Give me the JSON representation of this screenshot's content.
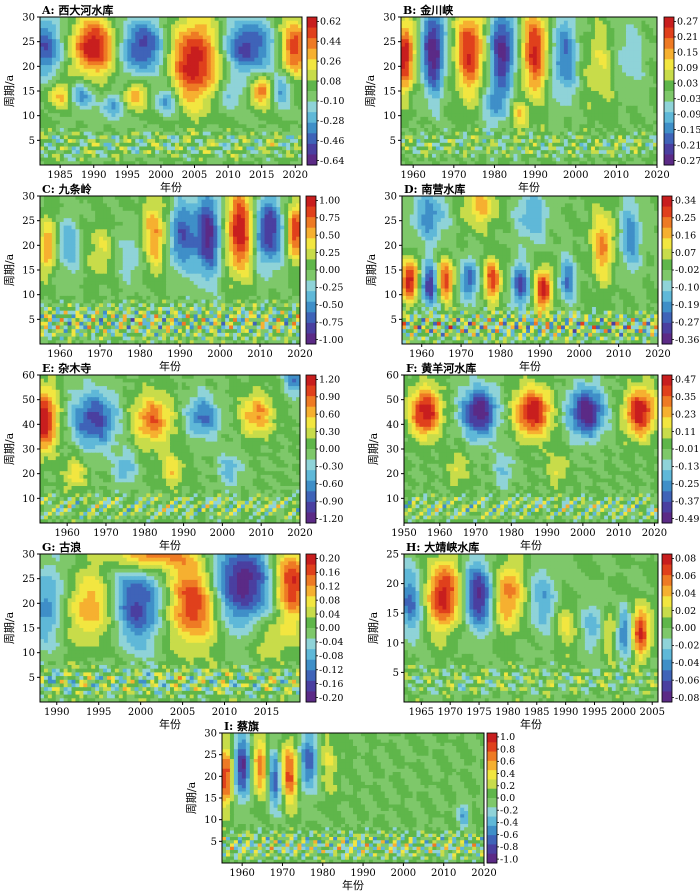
{
  "figure": {
    "palette": [
      "#5b2a86",
      "#4a3fa0",
      "#3f63b8",
      "#3f8fc8",
      "#5fb8d8",
      "#8fd3d8",
      "#7ec86a",
      "#5fb64a",
      "#c8dc4a",
      "#f2e640",
      "#f6b030",
      "#ee7a24",
      "#e0401c",
      "#c81e1e"
    ]
  },
  "chart_data": [
    {
      "type": "heatmap",
      "title": "A: 西大河水库",
      "xlabel": "年份",
      "ylabel": "周期/a",
      "x_range": [
        1982,
        2021
      ],
      "x_ticks": [
        1985,
        1990,
        1995,
        2000,
        2005,
        2010,
        2015,
        2020
      ],
      "y_range": [
        0,
        30
      ],
      "y_ticks": [
        5,
        10,
        15,
        20,
        25,
        30
      ],
      "colorbar_ticks": [
        "0.62",
        "0.44",
        "0.26",
        "0.08",
        "-0.10",
        "-0.28",
        "-0.46",
        "-0.64"
      ],
      "blobs": [
        {
          "x": 1983,
          "y": 24,
          "sx": 2.0,
          "sy": 4,
          "a": -0.7
        },
        {
          "x": 1990,
          "y": 24,
          "sx": 2.5,
          "sy": 4,
          "a": 1.0
        },
        {
          "x": 1997,
          "y": 24,
          "sx": 2.5,
          "sy": 4,
          "a": -0.8
        },
        {
          "x": 2005,
          "y": 21,
          "sx": 2.5,
          "sy": 6,
          "a": 1.0
        },
        {
          "x": 2013,
          "y": 24,
          "sx": 2.5,
          "sy": 4,
          "a": -0.8
        },
        {
          "x": 2020,
          "y": 24,
          "sx": 1.5,
          "sy": 4,
          "a": 0.8
        },
        {
          "x": 1985,
          "y": 14,
          "sx": 1.2,
          "sy": 2,
          "a": 0.5
        },
        {
          "x": 1988,
          "y": 14,
          "sx": 1.2,
          "sy": 2,
          "a": -0.5
        },
        {
          "x": 1993,
          "y": 12,
          "sx": 1.2,
          "sy": 2,
          "a": -0.5
        },
        {
          "x": 1996,
          "y": 14,
          "sx": 1.2,
          "sy": 2,
          "a": 0.6
        },
        {
          "x": 2001,
          "y": 13,
          "sx": 1.2,
          "sy": 2,
          "a": -0.5
        },
        {
          "x": 2015,
          "y": 15,
          "sx": 1.2,
          "sy": 2,
          "a": 0.7
        },
        {
          "x": 2018,
          "y": 15,
          "sx": 1.0,
          "sy": 2,
          "a": -0.5
        },
        {
          "x": 2010,
          "y": 14,
          "sx": 1.2,
          "sy": 2,
          "a": -0.4
        }
      ],
      "osc": {
        "ymax": 9,
        "amp": 0.4,
        "period": 3.5
      }
    },
    {
      "type": "heatmap",
      "title": "B: 金川峡",
      "xlabel": "年份",
      "ylabel": "周期/a",
      "x_range": [
        1957,
        2020
      ],
      "x_ticks": [
        1960,
        1970,
        1980,
        1990,
        2000,
        2010,
        2020
      ],
      "y_range": [
        0,
        30
      ],
      "y_ticks": [
        5,
        10,
        15,
        20,
        25,
        30
      ],
      "colorbar_ticks": [
        "0.27",
        "0.21",
        "0.15",
        "0.09",
        "0.03",
        "-0.03",
        "-0.09",
        "-0.15",
        "-0.21",
        "-0.27"
      ],
      "blobs": [
        {
          "x": 1958,
          "y": 22,
          "sx": 1.5,
          "sy": 5,
          "a": 1.0
        },
        {
          "x": 1965,
          "y": 23,
          "sx": 2.0,
          "sy": 6,
          "a": -1.0
        },
        {
          "x": 1974,
          "y": 23,
          "sx": 2.5,
          "sy": 6,
          "a": 0.9
        },
        {
          "x": 1982,
          "y": 23,
          "sx": 2.5,
          "sy": 6,
          "a": -0.9
        },
        {
          "x": 1990,
          "y": 23,
          "sx": 2.5,
          "sy": 6,
          "a": 0.9
        },
        {
          "x": 1997,
          "y": 22,
          "sx": 2.5,
          "sy": 6,
          "a": -0.6
        },
        {
          "x": 2006,
          "y": 20,
          "sx": 3.0,
          "sy": 6,
          "a": 0.3
        },
        {
          "x": 2013,
          "y": 22,
          "sx": 2.5,
          "sy": 5,
          "a": -0.3
        },
        {
          "x": 1980,
          "y": 12,
          "sx": 2.0,
          "sy": 3,
          "a": -0.4
        },
        {
          "x": 1986,
          "y": 10,
          "sx": 1.5,
          "sy": 2,
          "a": 0.4
        }
      ],
      "osc": {
        "ymax": 9,
        "amp": 0.35,
        "period": 4
      }
    },
    {
      "type": "heatmap",
      "title": "C: 九条岭",
      "xlabel": "年份",
      "ylabel": "周期/a",
      "x_range": [
        1955,
        2020
      ],
      "x_ticks": [
        1960,
        1970,
        1980,
        1990,
        2000,
        2010,
        2020
      ],
      "y_range": [
        0,
        30
      ],
      "y_ticks": [
        5,
        10,
        15,
        20,
        25,
        30
      ],
      "colorbar_ticks": [
        "1.00",
        "0.75",
        "0.50",
        "0.25",
        "0.00",
        "-0.25",
        "-0.50",
        "-0.75",
        "-1.00"
      ],
      "blobs": [
        {
          "x": 1957,
          "y": 20,
          "sx": 1.5,
          "sy": 4,
          "a": 0.6
        },
        {
          "x": 1962,
          "y": 20,
          "sx": 2.0,
          "sy": 4,
          "a": -0.4
        },
        {
          "x": 1970,
          "y": 19,
          "sx": 2.0,
          "sy": 4,
          "a": 0.3
        },
        {
          "x": 1978,
          "y": 18,
          "sx": 2.0,
          "sy": 4,
          "a": -0.3
        },
        {
          "x": 1984,
          "y": 22,
          "sx": 2.5,
          "sy": 5,
          "a": 0.6
        },
        {
          "x": 1990,
          "y": 22,
          "sx": 2.5,
          "sy": 5,
          "a": -0.7
        },
        {
          "x": 1997,
          "y": 22,
          "sx": 2.5,
          "sy": 6,
          "a": -0.9
        },
        {
          "x": 2005,
          "y": 23,
          "sx": 2.5,
          "sy": 6,
          "a": 1.0
        },
        {
          "x": 2012,
          "y": 23,
          "sx": 2.5,
          "sy": 5,
          "a": -0.9
        },
        {
          "x": 2019,
          "y": 23,
          "sx": 1.5,
          "sy": 4,
          "a": 0.9
        }
      ],
      "osc": {
        "ymax": 10,
        "amp": 0.7,
        "period": 3.2
      }
    },
    {
      "type": "heatmap",
      "title": "D: 南营水库",
      "xlabel": "年份",
      "ylabel": "周期/a",
      "x_range": [
        1955,
        2020
      ],
      "x_ticks": [
        1960,
        1970,
        1980,
        1990,
        2000,
        2010,
        2020
      ],
      "y_range": [
        0,
        30
      ],
      "y_ticks": [
        5,
        10,
        15,
        20,
        25,
        30
      ],
      "colorbar_ticks": [
        "0.34",
        "0.25",
        "0.16",
        "0.07",
        "-0.02",
        "-0.10",
        "-0.19",
        "-0.27",
        "-0.36"
      ],
      "blobs": [
        {
          "x": 1957,
          "y": 13,
          "sx": 1.5,
          "sy": 3,
          "a": 1.0
        },
        {
          "x": 1962,
          "y": 12,
          "sx": 1.5,
          "sy": 3,
          "a": -0.9
        },
        {
          "x": 1966,
          "y": 13,
          "sx": 1.5,
          "sy": 3,
          "a": 0.8
        },
        {
          "x": 1972,
          "y": 13,
          "sx": 1.5,
          "sy": 3,
          "a": -0.7
        },
        {
          "x": 1978,
          "y": 13,
          "sx": 1.5,
          "sy": 3,
          "a": 0.8
        },
        {
          "x": 1985,
          "y": 12,
          "sx": 1.5,
          "sy": 3,
          "a": -0.8
        },
        {
          "x": 1991,
          "y": 11,
          "sx": 1.5,
          "sy": 3,
          "a": 1.0
        },
        {
          "x": 1997,
          "y": 13,
          "sx": 1.5,
          "sy": 3,
          "a": -0.6
        },
        {
          "x": 2006,
          "y": 20,
          "sx": 2.0,
          "sy": 5,
          "a": 0.6
        },
        {
          "x": 2013,
          "y": 22,
          "sx": 2.0,
          "sy": 5,
          "a": -0.5
        },
        {
          "x": 1975,
          "y": 28,
          "sx": 3.0,
          "sy": 3,
          "a": 0.5
        },
        {
          "x": 1988,
          "y": 26,
          "sx": 3.0,
          "sy": 4,
          "a": -0.4
        },
        {
          "x": 1962,
          "y": 26,
          "sx": 3.0,
          "sy": 4,
          "a": -0.5
        }
      ],
      "osc": {
        "ymax": 8,
        "amp": 0.8,
        "period": 2.6
      }
    },
    {
      "type": "heatmap",
      "title": "E: 杂木寺",
      "xlabel": "年份",
      "ylabel": "周期/a",
      "x_range": [
        1953,
        2020
      ],
      "x_ticks": [
        1960,
        1970,
        1980,
        1990,
        2000,
        2010,
        2020
      ],
      "y_range": [
        0,
        60
      ],
      "y_ticks": [
        10,
        20,
        30,
        40,
        50,
        60
      ],
      "colorbar_ticks": [
        "1.20",
        "0.90",
        "0.60",
        "0.30",
        "0.00",
        "-0.30",
        "-0.60",
        "-0.90",
        "-1.20"
      ],
      "blobs": [
        {
          "x": 1954,
          "y": 42,
          "sx": 2.5,
          "sy": 9,
          "a": 1.0
        },
        {
          "x": 1967,
          "y": 42,
          "sx": 4.0,
          "sy": 8,
          "a": -0.8
        },
        {
          "x": 1982,
          "y": 42,
          "sx": 3.5,
          "sy": 7,
          "a": 0.7
        },
        {
          "x": 1995,
          "y": 43,
          "sx": 3.0,
          "sy": 6,
          "a": -0.6
        },
        {
          "x": 2009,
          "y": 44,
          "sx": 3.0,
          "sy": 6,
          "a": 0.6
        },
        {
          "x": 2019,
          "y": 58,
          "sx": 2.0,
          "sy": 4,
          "a": -0.6
        },
        {
          "x": 1962,
          "y": 20,
          "sx": 2.0,
          "sy": 5,
          "a": 0.4
        },
        {
          "x": 1975,
          "y": 22,
          "sx": 2.0,
          "sy": 5,
          "a": -0.4
        },
        {
          "x": 1987,
          "y": 22,
          "sx": 2.0,
          "sy": 5,
          "a": 0.4
        },
        {
          "x": 2002,
          "y": 22,
          "sx": 2.0,
          "sy": 5,
          "a": -0.4
        }
      ],
      "osc": {
        "ymax": 14,
        "amp": 0.5,
        "period": 3.0
      }
    },
    {
      "type": "heatmap",
      "title": "F: 黄羊河水库",
      "xlabel": "年份",
      "ylabel": "周期/a",
      "x_range": [
        1950,
        2021
      ],
      "x_ticks": [
        1950,
        1960,
        1970,
        1980,
        1990,
        2000,
        2010,
        2020
      ],
      "y_range": [
        0,
        60
      ],
      "y_ticks": [
        10,
        20,
        30,
        40,
        50,
        60
      ],
      "colorbar_ticks": [
        "0.47",
        "0.35",
        "0.23",
        "0.11",
        "-0.01",
        "-0.13",
        "-0.25",
        "-0.37",
        "-0.49"
      ],
      "blobs": [
        {
          "x": 1956,
          "y": 45,
          "sx": 3.0,
          "sy": 7,
          "a": 1.0
        },
        {
          "x": 1971,
          "y": 45,
          "sx": 3.5,
          "sy": 7,
          "a": -1.0
        },
        {
          "x": 1986,
          "y": 45,
          "sx": 3.5,
          "sy": 7,
          "a": 1.0
        },
        {
          "x": 2001,
          "y": 45,
          "sx": 3.5,
          "sy": 7,
          "a": -1.0
        },
        {
          "x": 2016,
          "y": 45,
          "sx": 3.0,
          "sy": 7,
          "a": 1.0
        },
        {
          "x": 1965,
          "y": 22,
          "sx": 2.0,
          "sy": 5,
          "a": 0.3
        },
        {
          "x": 1978,
          "y": 22,
          "sx": 2.0,
          "sy": 5,
          "a": -0.3
        },
        {
          "x": 1993,
          "y": 22,
          "sx": 2.0,
          "sy": 5,
          "a": 0.3
        }
      ],
      "osc": {
        "ymax": 14,
        "amp": 0.5,
        "period": 3.0
      }
    },
    {
      "type": "heatmap",
      "title": "G: 古浪",
      "xlabel": "年份",
      "ylabel": "周期/a",
      "x_range": [
        1988,
        2019
      ],
      "x_ticks": [
        1990,
        1995,
        2000,
        2005,
        2010,
        2015
      ],
      "y_range": [
        0,
        30
      ],
      "y_ticks": [
        5,
        10,
        15,
        20,
        25,
        30
      ],
      "colorbar_ticks": [
        "0.20",
        "0.16",
        "0.12",
        "0.08",
        "0.04",
        "0.00",
        "-0.04",
        "-0.08",
        "-0.12",
        "-0.16",
        "-0.20"
      ],
      "blobs": [
        {
          "x": 1989,
          "y": 20,
          "sx": 1.5,
          "sy": 6,
          "a": -0.5
        },
        {
          "x": 1994,
          "y": 19,
          "sx": 2.0,
          "sy": 5,
          "a": 0.6
        },
        {
          "x": 2000,
          "y": 20,
          "sx": 2.5,
          "sy": 6,
          "a": -0.8
        },
        {
          "x": 2006,
          "y": 20,
          "sx": 2.5,
          "sy": 6,
          "a": 0.9
        },
        {
          "x": 2012,
          "y": 24,
          "sx": 2.5,
          "sy": 6,
          "a": -1.0
        },
        {
          "x": 2018,
          "y": 24,
          "sx": 1.5,
          "sy": 5,
          "a": 0.9
        },
        {
          "x": 2001,
          "y": 30,
          "sx": 3.0,
          "sy": 2.5,
          "a": 0.8
        },
        {
          "x": 2016,
          "y": 13,
          "sx": 2.0,
          "sy": 3,
          "a": 0.3
        }
      ],
      "osc": {
        "ymax": 9,
        "amp": 0.55,
        "period": 2.4
      }
    },
    {
      "type": "heatmap",
      "title": "H: 大靖峡水库",
      "xlabel": "年份",
      "ylabel": "周期/a",
      "x_range": [
        1962,
        2006
      ],
      "x_ticks": [
        1965,
        1970,
        1975,
        1980,
        1985,
        1990,
        1995,
        2000,
        2005
      ],
      "y_range": [
        0,
        25
      ],
      "y_ticks": [
        5,
        10,
        15,
        20,
        25
      ],
      "colorbar_ticks": [
        "0.08",
        "0.06",
        "0.04",
        "0.02",
        "0.00",
        "-0.02",
        "-0.04",
        "-0.06",
        "-0.08"
      ],
      "blobs": [
        {
          "x": 1963,
          "y": 17,
          "sx": 1.5,
          "sy": 4,
          "a": -0.6
        },
        {
          "x": 1969,
          "y": 18,
          "sx": 2.0,
          "sy": 4,
          "a": 1.0
        },
        {
          "x": 1975,
          "y": 18,
          "sx": 2.0,
          "sy": 4,
          "a": -0.9
        },
        {
          "x": 1980,
          "y": 18,
          "sx": 2.0,
          "sy": 4,
          "a": 0.7
        },
        {
          "x": 1986,
          "y": 17,
          "sx": 2.0,
          "sy": 4,
          "a": -0.4
        },
        {
          "x": 1990,
          "y": 13,
          "sx": 1.5,
          "sy": 3,
          "a": 0.3
        },
        {
          "x": 1995,
          "y": 13,
          "sx": 1.5,
          "sy": 3,
          "a": -0.4
        },
        {
          "x": 1998,
          "y": 12,
          "sx": 1.2,
          "sy": 3,
          "a": 0.5
        },
        {
          "x": 2000,
          "y": 12,
          "sx": 1.2,
          "sy": 3,
          "a": -0.7
        },
        {
          "x": 2003,
          "y": 12,
          "sx": 1.2,
          "sy": 3,
          "a": 0.9
        }
      ],
      "osc": {
        "ymax": 8,
        "amp": 0.35,
        "period": 3.5
      }
    },
    {
      "type": "heatmap",
      "title": "I: 蔡旗",
      "xlabel": "年份",
      "ylabel": "周期/a",
      "x_range": [
        1955,
        2020
      ],
      "x_ticks": [
        1960,
        1970,
        1980,
        1990,
        2000,
        2010,
        2020
      ],
      "y_range": [
        0,
        30
      ],
      "y_ticks": [
        5,
        10,
        15,
        20,
        25,
        30
      ],
      "colorbar_ticks": [
        "1.0",
        "0.8",
        "0.6",
        "0.4",
        "0.2",
        "0.0",
        "-0.2",
        "-0.4",
        "-0.6",
        "-0.8",
        "-1.0"
      ],
      "blobs": [
        {
          "x": 1956,
          "y": 20,
          "sx": 1.2,
          "sy": 5,
          "a": 0.9
        },
        {
          "x": 1960,
          "y": 22,
          "sx": 1.5,
          "sy": 5,
          "a": -0.9
        },
        {
          "x": 1965,
          "y": 22,
          "sx": 1.8,
          "sy": 5,
          "a": 0.7
        },
        {
          "x": 1968,
          "y": 20,
          "sx": 1.5,
          "sy": 5,
          "a": -0.9
        },
        {
          "x": 1972,
          "y": 21,
          "sx": 2.0,
          "sy": 5,
          "a": 0.9
        },
        {
          "x": 1976,
          "y": 23,
          "sx": 2.0,
          "sy": 5,
          "a": -0.8
        },
        {
          "x": 1981,
          "y": 23,
          "sx": 2.0,
          "sy": 5,
          "a": 0.3
        },
        {
          "x": 2015,
          "y": 11,
          "sx": 1.0,
          "sy": 2,
          "a": -0.4
        }
      ],
      "osc": {
        "ymax": 9,
        "amp": 0.6,
        "period": 2.8
      }
    }
  ]
}
